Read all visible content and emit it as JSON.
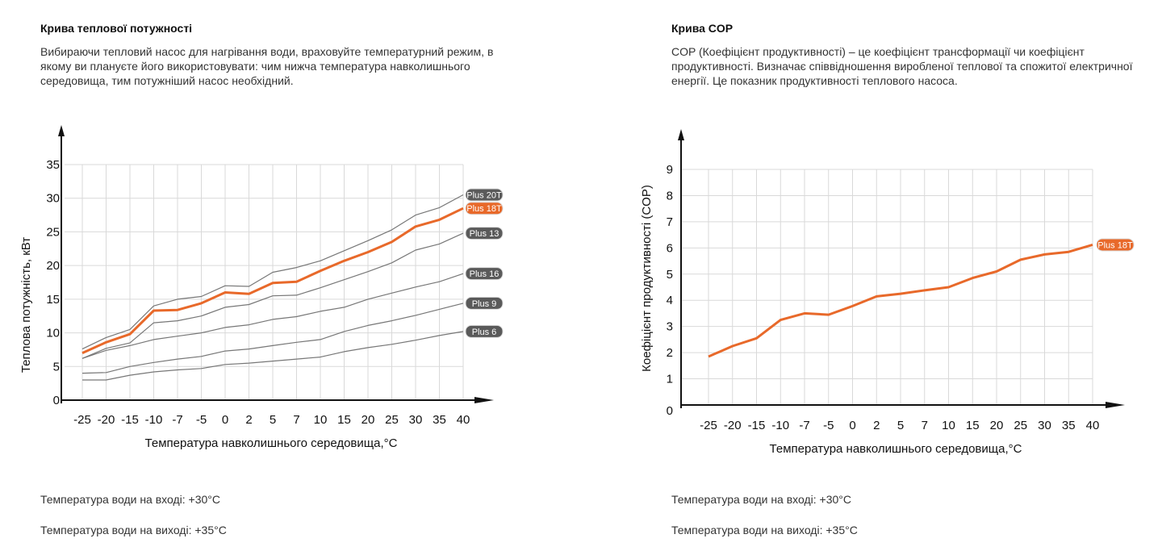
{
  "colors": {
    "accent": "#e8692a",
    "gray_line": "#777777",
    "grid": "#d9d9d9",
    "badge_gray": "#5a5a5a"
  },
  "left": {
    "title": "Крива теплової потужності",
    "description": "Вибираючи тепловий насос для нагрівання води, враховуйте температурний режим, в якому ви плануєте його використовувати: чим нижча температура навколишнього середовища, тим потужніший насос необхідний.",
    "inlet": "Температура води на вході: +30°C",
    "outlet": "Температура води на виході: +35°C"
  },
  "right": {
    "title": "Крива COP",
    "description": "COP (Коефіцієнт продуктивності) – це коефіцієнт трансформації чи коефіцієнт продуктивності. Визначає співвідношення виробленої теплової та спожитої електричної енергії. Це показник продуктивності теплового насоса.",
    "inlet": "Температура води на вході: +30°C",
    "outlet": "Температура води на виході: +35°C"
  },
  "chart_data": [
    {
      "type": "line",
      "title": "Крива теплової потужності",
      "xlabel": "Температура навколишнього середовища,°C",
      "ylabel": "Теплова потужність, кВт",
      "categories": [
        "-25",
        "-20",
        "-15",
        "-10",
        "-7",
        "-5",
        "0",
        "2",
        "5",
        "7",
        "10",
        "15",
        "20",
        "25",
        "30",
        "35",
        "40"
      ],
      "yticks": [
        0,
        5,
        10,
        15,
        20,
        25,
        30,
        35
      ],
      "ylim": [
        0,
        35
      ],
      "grid": true,
      "series": [
        {
          "name": "Plus 20T",
          "highlight": false,
          "values": [
            7.6,
            9.3,
            10.5,
            14.0,
            15.0,
            15.4,
            17.0,
            16.9,
            19.0,
            19.7,
            20.7,
            22.2,
            23.7,
            25.3,
            27.5,
            28.6,
            30.5
          ]
        },
        {
          "name": "Plus 18T",
          "highlight": true,
          "values": [
            7.0,
            8.6,
            9.8,
            13.3,
            13.4,
            14.4,
            16.0,
            15.8,
            17.4,
            17.6,
            19.2,
            20.7,
            22.0,
            23.5,
            25.8,
            26.8,
            28.5
          ]
        },
        {
          "name": "Plus 13",
          "highlight": false,
          "values": [
            6.2,
            7.7,
            8.5,
            11.5,
            11.8,
            12.5,
            13.8,
            14.2,
            15.5,
            15.6,
            16.7,
            17.9,
            19.1,
            20.4,
            22.3,
            23.2,
            24.8
          ]
        },
        {
          "name": "Plus 16",
          "highlight": false,
          "values": [
            6.2,
            7.4,
            8.1,
            9.0,
            9.5,
            10.0,
            10.8,
            11.2,
            12.0,
            12.4,
            13.2,
            13.8,
            15.0,
            15.9,
            16.8,
            17.6,
            18.8
          ]
        },
        {
          "name": "Plus 9",
          "highlight": false,
          "values": [
            4.0,
            4.1,
            5.0,
            5.6,
            6.1,
            6.5,
            7.3,
            7.6,
            8.1,
            8.6,
            9.0,
            10.2,
            11.1,
            11.8,
            12.6,
            13.5,
            14.4
          ]
        },
        {
          "name": "Plus 6",
          "highlight": false,
          "values": [
            3.0,
            3.0,
            3.7,
            4.2,
            4.5,
            4.7,
            5.3,
            5.5,
            5.8,
            6.1,
            6.4,
            7.2,
            7.8,
            8.3,
            8.9,
            9.6,
            10.2
          ]
        }
      ]
    },
    {
      "type": "line",
      "title": "Крива COP",
      "xlabel": "Температура навколишнього середовища,°C",
      "ylabel": "Коефіцієнт продуктивності (COP)",
      "categories": [
        "-25",
        "-20",
        "-15",
        "-10",
        "-7",
        "-5",
        "0",
        "2",
        "5",
        "7",
        "10",
        "15",
        "20",
        "25",
        "30",
        "35",
        "40"
      ],
      "yticks": [
        0,
        1,
        2,
        3,
        4,
        5,
        6,
        7,
        8,
        9
      ],
      "ylim": [
        0,
        9
      ],
      "grid": true,
      "series": [
        {
          "name": "Plus 18T",
          "highlight": true,
          "values": [
            1.85,
            2.25,
            2.55,
            3.25,
            3.5,
            3.45,
            3.78,
            4.15,
            4.25,
            4.38,
            4.5,
            4.85,
            5.1,
            5.55,
            5.75,
            5.85,
            6.12
          ]
        }
      ]
    }
  ]
}
